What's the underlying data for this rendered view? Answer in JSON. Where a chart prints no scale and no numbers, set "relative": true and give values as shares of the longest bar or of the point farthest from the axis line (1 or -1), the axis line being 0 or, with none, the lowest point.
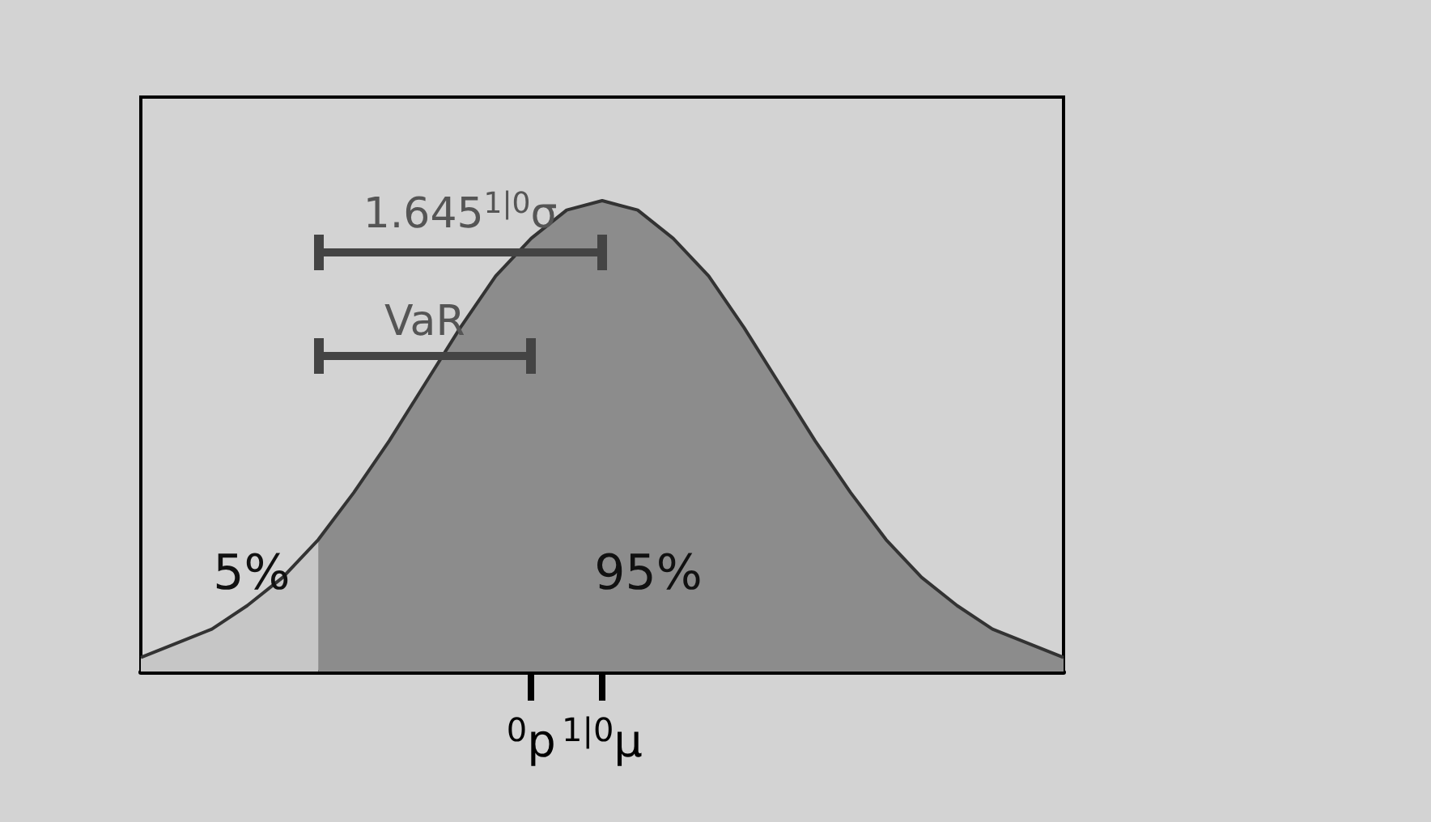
{
  "chart_data": {
    "type": "area",
    "relative": true,
    "marker": "none",
    "categories": [
      null,
      null,
      null,
      null,
      null,
      null,
      null,
      null,
      null,
      null,
      null,
      "$^{0}$p",
      null,
      "$^{1|0}$μ",
      null,
      null,
      null,
      null,
      null,
      null,
      null,
      null,
      null,
      null,
      null,
      null,
      null
    ],
    "series": [
      {
        "type": "area",
        "color": "#c6c6c6",
        "values": [
          0.03,
          0.06,
          0.09,
          0.14,
          0.2,
          0.28,
          null,
          null,
          null,
          null,
          null,
          null,
          null,
          null,
          null,
          null,
          null,
          null,
          null,
          null,
          null,
          null,
          null,
          null,
          null,
          null,
          null
        ]
      },
      {
        "type": "area",
        "color": "#8c8c8c",
        "values": [
          null,
          null,
          null,
          null,
          null,
          0.28,
          0.38,
          0.49,
          0.61,
          0.73,
          0.84,
          0.92,
          0.98,
          1,
          0.98,
          0.92,
          0.84,
          0.73,
          0.61,
          0.49,
          0.38,
          0.28,
          0.2,
          0.14,
          0.09,
          0.06,
          0.03
        ]
      },
      {
        "type": "line",
        "color": "#333333",
        "values": [
          0.03,
          0.06,
          0.09,
          0.14,
          0.2,
          0.28,
          0.38,
          0.49,
          0.61,
          0.73,
          0.84,
          0.92,
          0.98,
          1,
          0.98,
          0.92,
          0.84,
          0.73,
          0.61,
          0.49,
          0.38,
          0.28,
          0.2,
          0.14,
          0.09,
          0.06,
          0.03
        ]
      },
      {
        "type": "line",
        "name": "1.645$^{1|0}$σ",
        "color": "#444444",
        "values": [
          null,
          null,
          null,
          null,
          null,
          0.89,
          0.89,
          0.89,
          0.89,
          0.89,
          0.89,
          0.89,
          0.89,
          0.89,
          null,
          null,
          null,
          null,
          null,
          null,
          null,
          null,
          null,
          null,
          null,
          null,
          null
        ]
      },
      {
        "type": "line",
        "name": "VaR",
        "color": "#444444",
        "values": [
          null,
          null,
          null,
          null,
          null,
          0.67,
          0.67,
          0.67,
          0.67,
          0.67,
          0.67,
          0.67,
          null,
          null,
          null,
          null,
          null,
          null,
          null,
          null,
          null,
          null,
          null,
          null,
          null,
          null,
          null
        ]
      }
    ],
    "annotations": [
      "5%",
      "95%"
    ]
  }
}
